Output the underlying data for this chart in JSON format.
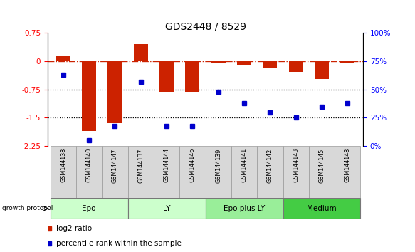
{
  "title": "GDS2448 / 8529",
  "samples": [
    "GSM144138",
    "GSM144140",
    "GSM144147",
    "GSM144137",
    "GSM144144",
    "GSM144146",
    "GSM144139",
    "GSM144141",
    "GSM144142",
    "GSM144143",
    "GSM144145",
    "GSM144148"
  ],
  "log2_ratio": [
    0.15,
    -1.85,
    -1.65,
    0.45,
    -0.82,
    -0.82,
    -0.05,
    -0.1,
    -0.2,
    -0.28,
    -0.48,
    -0.04
  ],
  "percentile_rank": [
    63,
    5,
    18,
    57,
    18,
    18,
    48,
    38,
    30,
    25,
    35,
    38
  ],
  "groups": [
    {
      "label": "Epo",
      "start": 0,
      "end": 2,
      "color": "#ccffcc"
    },
    {
      "label": "LY",
      "start": 3,
      "end": 5,
      "color": "#ccffcc"
    },
    {
      "label": "Epo plus LY",
      "start": 6,
      "end": 8,
      "color": "#99ee99"
    },
    {
      "label": "Medium",
      "start": 9,
      "end": 11,
      "color": "#44cc44"
    }
  ],
  "bar_color": "#cc2200",
  "dot_color": "#0000cc",
  "ylim_left": [
    -2.25,
    0.75
  ],
  "ylim_right": [
    0,
    100
  ],
  "yticks_left": [
    0.75,
    0.0,
    -0.75,
    -1.5,
    -2.25
  ],
  "yticks_right": [
    100,
    75,
    50,
    25,
    0
  ],
  "dotted_lines": [
    -0.75,
    -1.5
  ],
  "legend_items": [
    "log2 ratio",
    "percentile rank within the sample"
  ],
  "bar_width": 0.55,
  "sample_cell_color": "#d8d8d8",
  "sample_cell_edge": "#999999",
  "growth_protocol_label": "growth protocol"
}
